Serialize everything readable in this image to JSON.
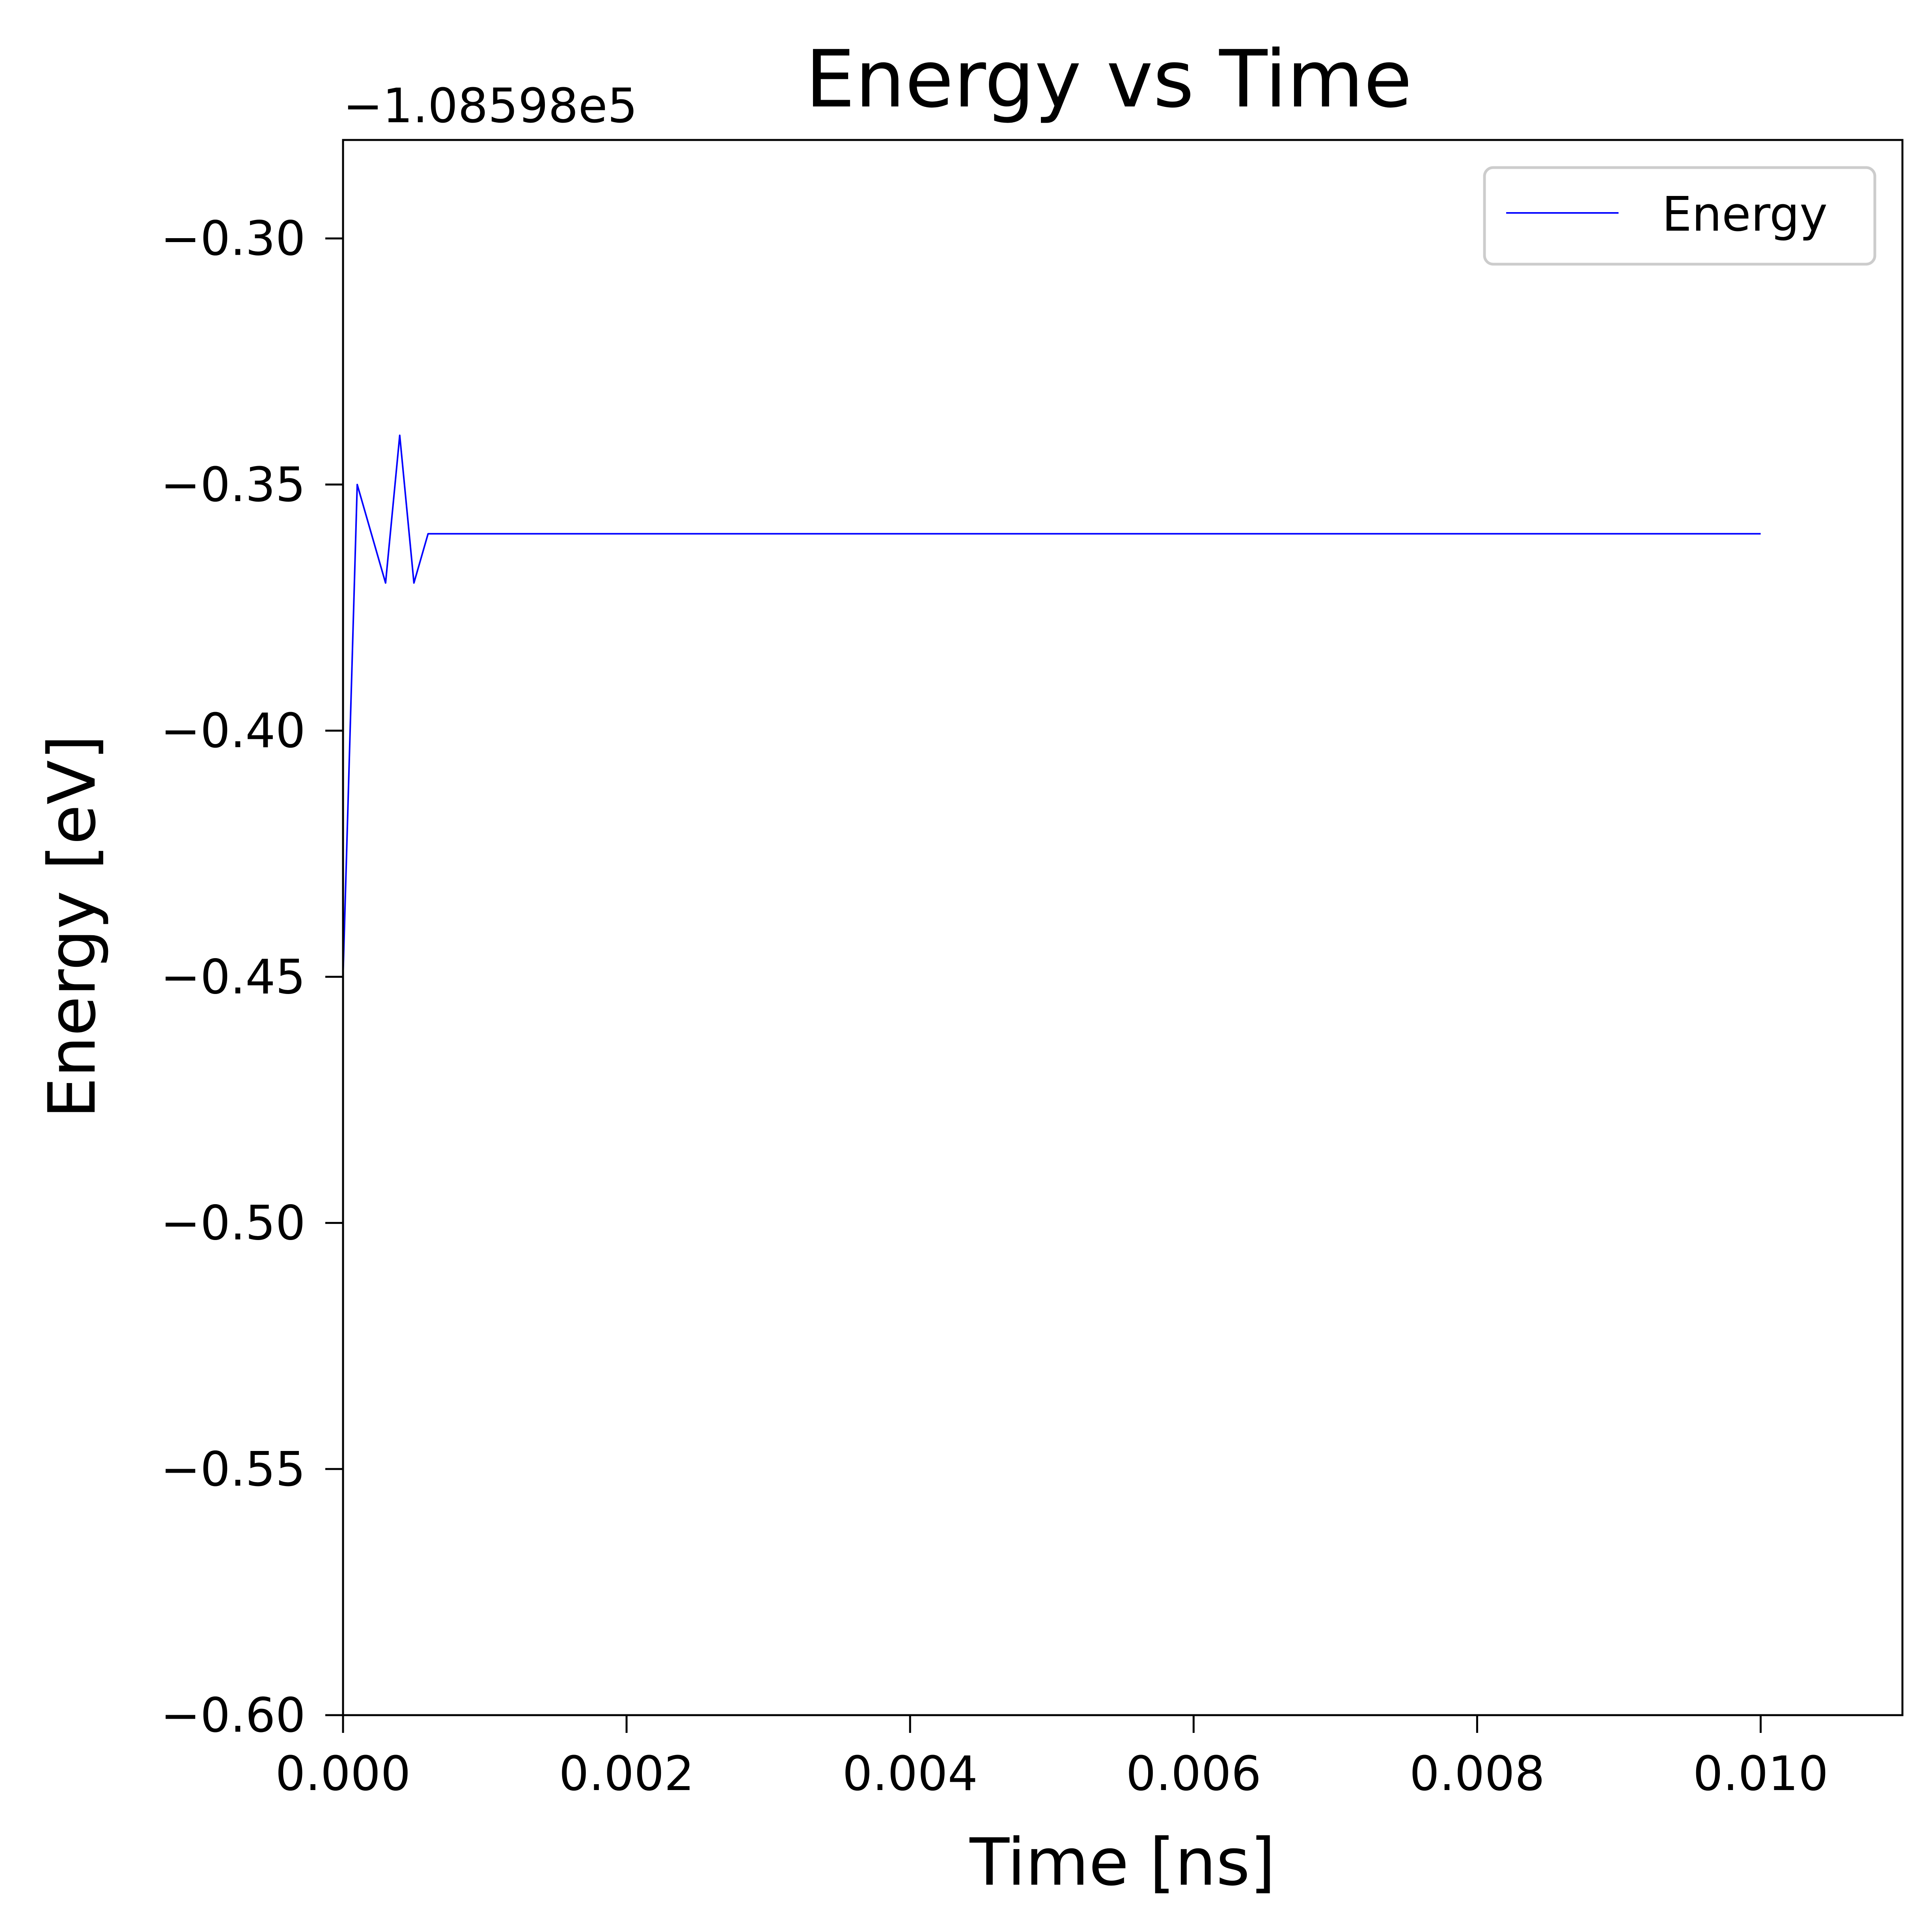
{
  "chart_data": {
    "type": "line",
    "title": "Energy vs Time",
    "xlabel": "Time [ns]",
    "ylabel": "Energy [eV]",
    "y_offset_label": "−1.08598e5",
    "xlim": [
      0.0,
      0.011
    ],
    "ylim": [
      -0.6,
      -0.28
    ],
    "xticks": [
      0.0,
      0.002,
      0.004,
      0.006,
      0.008,
      0.01
    ],
    "xtick_labels": [
      "0.000",
      "0.002",
      "0.004",
      "0.006",
      "0.008",
      "0.010"
    ],
    "yticks": [
      -0.6,
      -0.55,
      -0.5,
      -0.45,
      -0.4,
      -0.35,
      -0.3
    ],
    "ytick_labels": [
      "−0.60",
      "−0.55",
      "−0.50",
      "−0.45",
      "−0.40",
      "−0.35",
      "−0.30"
    ],
    "grid": false,
    "legend_position": "top-right",
    "series": [
      {
        "name": "Energy",
        "color": "#0000ff",
        "x": [
          0.0,
          0.0001,
          0.0002,
          0.0003,
          0.0004,
          0.0005,
          0.0006,
          0.0007,
          0.0008,
          0.001,
          0.002,
          0.003,
          0.004,
          0.005,
          0.006,
          0.007,
          0.008,
          0.009,
          0.01
        ],
        "y": [
          -0.45,
          -0.35,
          -0.36,
          -0.37,
          -0.34,
          -0.37,
          -0.36,
          -0.36,
          -0.36,
          -0.36,
          -0.36,
          -0.36,
          -0.36,
          -0.36,
          -0.36,
          -0.36,
          -0.36,
          -0.36,
          -0.36
        ]
      }
    ]
  }
}
